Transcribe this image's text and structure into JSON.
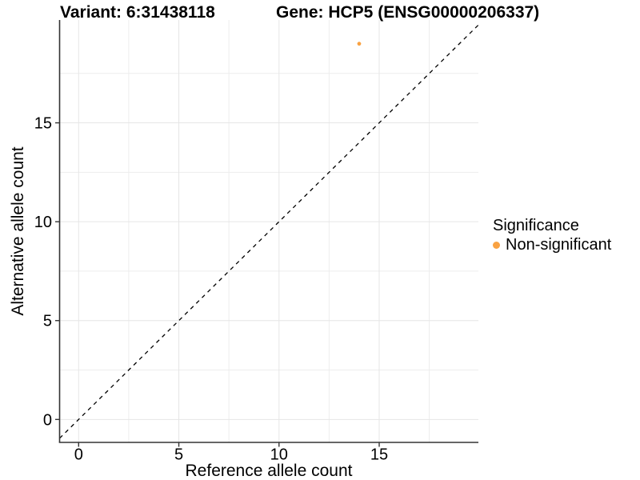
{
  "title": {
    "left": "Variant: 6:31438118",
    "right": "Gene: HCP5 (ENSG00000206337)"
  },
  "axes": {
    "x_label": "Reference allele count",
    "y_label": "Alternative allele count"
  },
  "legend": {
    "title": "Significance",
    "items": [
      {
        "label": "Non-significant",
        "color": "#F9A242"
      }
    ]
  },
  "chart_data": {
    "type": "scatter",
    "title": "Variant: 6:31438118   Gene: HCP5 (ENSG00000206337)",
    "xlabel": "Reference allele count",
    "ylabel": "Alternative allele count",
    "xlim": [
      -0.95,
      19.95
    ],
    "ylim": [
      -1.16,
      20.2
    ],
    "x_major_ticks": [
      0,
      5,
      10,
      15
    ],
    "y_major_ticks": [
      0,
      5,
      10,
      15
    ],
    "x_minor_gridlines": [
      2.5,
      7.5,
      12.5,
      17.5
    ],
    "y_minor_gridlines": [
      2.5,
      7.5,
      12.5,
      17.5
    ],
    "grid": true,
    "legend_position": "right",
    "reference_line": {
      "type": "identity",
      "slope": 1,
      "intercept": 0,
      "style": "dashed",
      "color": "#000000"
    },
    "series": [
      {
        "name": "Non-significant",
        "color": "#F9A242",
        "points": [
          {
            "x": 14,
            "y": 19
          }
        ]
      }
    ],
    "colors": {
      "point": "#F9A242",
      "grid_major": "#E6E6E6",
      "grid_minor": "#EDEDED",
      "axis_line": "#333333",
      "text": "#000000"
    }
  }
}
